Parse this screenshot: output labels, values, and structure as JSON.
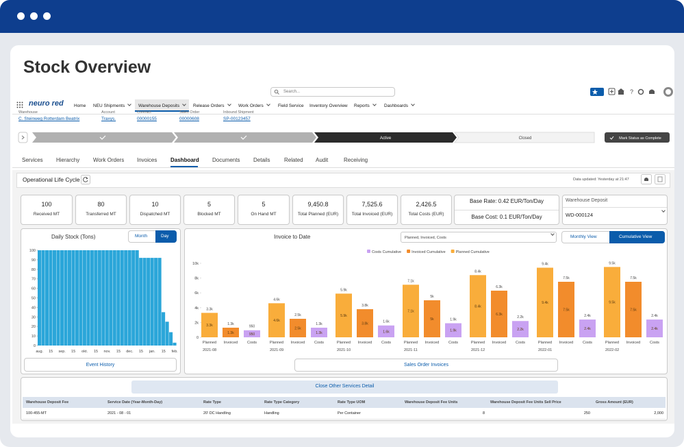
{
  "header": {
    "title": "Stock Overview"
  },
  "app": {
    "search": "Search...",
    "logo": "neuro red",
    "nav": [
      "Home",
      "NEU Shipments",
      "Warehouse Deposits",
      "Release Orders",
      "Work Orders",
      "Field Service",
      "Inventory Overview",
      "Reports",
      "Dashboards"
    ]
  },
  "record": {
    "fields": [
      {
        "label": "Warehouse",
        "value": "C. Steinweg Rotterdam Beatrix"
      },
      {
        "label": "Account",
        "value": "Traxys."
      },
      {
        "label": "Contract",
        "value": "00000155"
      },
      {
        "label": "Sales Order",
        "value": "00000608"
      },
      {
        "label": "Inbound Shipment",
        "value": "SP-00123457"
      }
    ]
  },
  "path": {
    "stages": [
      "Active",
      "Closed"
    ],
    "button": "Mark Status as Complete"
  },
  "tabs": [
    "Services",
    "Hierarchy",
    "Work Orders",
    "Invoices",
    "Dashboard",
    "Documents",
    "Details",
    "Related",
    "Audit",
    "Receiving"
  ],
  "section": {
    "title": "Operational Life Cycle",
    "updated": "Data updated: Yesterday at 21:47"
  },
  "kpis": [
    {
      "value": "100",
      "label": "Received MT"
    },
    {
      "value": "80",
      "label": "Transferred MT"
    },
    {
      "value": "10",
      "label": "Dispatched MT"
    },
    {
      "value": "5",
      "label": "Blocked MT"
    },
    {
      "value": "5",
      "label": "On Hand MT"
    },
    {
      "value": "9,450.8",
      "label": "Total Planned (EUR)"
    },
    {
      "value": "7,525.6",
      "label": "Total Invoiced (EUR)"
    },
    {
      "value": "2,426.5",
      "label": "Total Costs (EUR)"
    }
  ],
  "rates": {
    "base_rate": "Base Rate: 0.42 EUR/Ton/Day",
    "base_cost": "Base Cost: 0.1 EUR/Ton/Day"
  },
  "deposit": {
    "label": "Warehouse Deposit",
    "value": "WD-000124"
  },
  "daily_controls": {
    "toggles": [
      "Month",
      "Day"
    ],
    "button": "Event History"
  },
  "invoice_controls": {
    "filter": "Planned, Invoiced, Costs",
    "views": [
      "Monthly View",
      "Cumulative View"
    ],
    "button": "Sales Order Invoices"
  },
  "chart_data": [
    {
      "type": "bar",
      "title": "Daily Stock (Tons)",
      "color": "#2ba6d9",
      "categories": [
        "aug.",
        null,
        null,
        "15",
        null,
        null,
        "sep.",
        null,
        null,
        "15",
        null,
        null,
        "okt.",
        null,
        null,
        "15",
        null,
        null,
        "nov.",
        null,
        null,
        "15",
        null,
        null,
        "dec.",
        null,
        null,
        "15",
        null,
        null,
        "jan.",
        null,
        null,
        "15",
        null,
        null,
        "feb."
      ],
      "values": [
        100,
        100,
        100,
        100,
        100,
        100,
        100,
        100,
        100,
        100,
        100,
        100,
        100,
        100,
        100,
        100,
        100,
        100,
        100,
        100,
        100,
        100,
        100,
        100,
        100,
        100,
        100,
        92,
        92,
        92,
        92,
        92,
        92,
        35,
        25,
        14,
        3
      ],
      "ylim": [
        0,
        100
      ],
      "yticks": [
        0,
        10,
        20,
        30,
        40,
        50,
        60,
        70,
        80,
        90,
        100
      ]
    },
    {
      "type": "grouped_bar",
      "title": "Invoice to Date",
      "categories": [
        "2021-08",
        "2021-09",
        "2021-10",
        "2021-11",
        "2021-12",
        "2022-01",
        "2022-02"
      ],
      "bar_labels": [
        "Planned",
        "Invoiced",
        "Costs"
      ],
      "series": [
        {
          "name": "Planned Cumulative",
          "color": "#f9ad3b",
          "values": [
            3300,
            4600,
            5900,
            7100,
            8400,
            9400,
            9500
          ],
          "value_labels": [
            "3.3k",
            "4.6k",
            "5.9k",
            "7.1k",
            "8.4k",
            "9.4k",
            "9.5k"
          ]
        },
        {
          "name": "Invoiced Cumulative",
          "color": "#f28c2c",
          "values": [
            1300,
            2500,
            3800,
            5000,
            6300,
            7500,
            7500
          ],
          "value_labels": [
            "1.3k",
            "2.5k",
            "3.8k",
            "5k",
            "6.3k",
            "7.5k",
            "7.5k"
          ]
        },
        {
          "name": "Costs Cumulative",
          "color": "#c9a2f2",
          "values": [
            950,
            1300,
            1600,
            1900,
            2200,
            2400,
            2400
          ],
          "value_labels": [
            "950",
            "1.3k",
            "1.6k",
            "1.9k",
            "2.2k",
            "2.4k",
            "2.4k"
          ]
        }
      ],
      "ylim": [
        0,
        10000
      ],
      "yticks": [
        0,
        {
          "value": 2000,
          "label": "2k"
        },
        {
          "value": 4000,
          "label": "4k"
        },
        {
          "value": 6000,
          "label": "6k"
        },
        {
          "value": 8000,
          "label": "8k"
        },
        {
          "value": 10000,
          "label": "10k"
        }
      ],
      "legend": "top"
    }
  ],
  "table": {
    "button": "Close Other Services Detail",
    "headers": [
      "Warehouse Deposit Fee",
      "Service Date (Year-Month-Day)",
      "Rate Type",
      "Rate Type Category",
      "Rate Type UOM",
      "Warehouse Deposit Fee Units",
      "Warehouse Deposit Fee Units Sell Price",
      "Gross Amount (EUR)"
    ],
    "rows": [
      [
        "100-455-MT",
        "2021 - 08 - 01",
        "20' DC Handling",
        "Handling",
        "Per Container",
        "8",
        "250",
        "2,000"
      ]
    ]
  }
}
